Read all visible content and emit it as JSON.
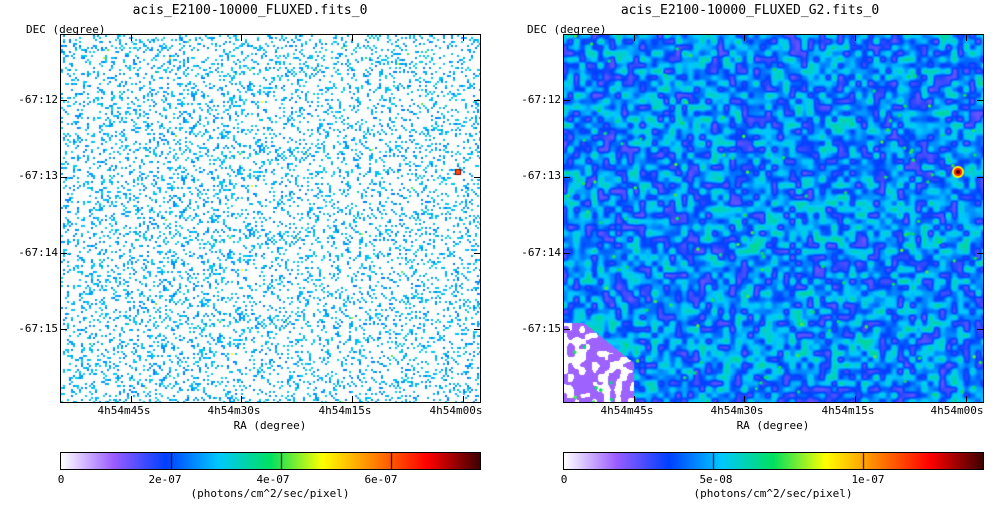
{
  "chart_data": [
    {
      "type": "heatmap",
      "title": "acis_E2100-10000_FLUXED.fits_0",
      "xlabel": "RA (degree)",
      "ylabel": "DEC (degree)",
      "x_ticks": [
        "4h54m45s",
        "4h54m30s",
        "4h54m15s",
        "4h54m00s"
      ],
      "y_ticks": [
        "-67:12",
        "-67:13",
        "-67:14",
        "-67:15"
      ],
      "colorbar": {
        "ticks": [
          "0",
          "2e-07",
          "4e-07",
          "6e-07"
        ],
        "range": [
          0,
          7.6e-07
        ],
        "label": "(photons/cm^2/sec/pixel)"
      },
      "style": "sparse",
      "colormap": [
        "#ffffff",
        "#9a5cff",
        "#0040ff",
        "#00c8ff",
        "#00e060",
        "#ffff00",
        "#ff8000",
        "#ff0000",
        "#400000"
      ]
    },
    {
      "type": "heatmap",
      "title": "acis_E2100-10000_FLUXED_G2.fits_0",
      "xlabel": "RA (degree)",
      "ylabel": "DEC (degree)",
      "x_ticks": [
        "4h54m45s",
        "4h54m30s",
        "4h54m15s",
        "4h54m00s"
      ],
      "y_ticks": [
        "-67:12",
        "-67:13",
        "-67:14",
        "-67:15"
      ],
      "colorbar": {
        "ticks": [
          "0",
          "5e-08",
          "1e-07"
        ],
        "range": [
          0,
          1.4e-07
        ],
        "label": "(photons/cm^2/sec/pixel)"
      },
      "style": "smooth",
      "colormap": [
        "#ffffff",
        "#9a5cff",
        "#0040ff",
        "#00c8ff",
        "#00e060",
        "#ffff00",
        "#ff8000",
        "#ff0000",
        "#400000"
      ]
    }
  ]
}
